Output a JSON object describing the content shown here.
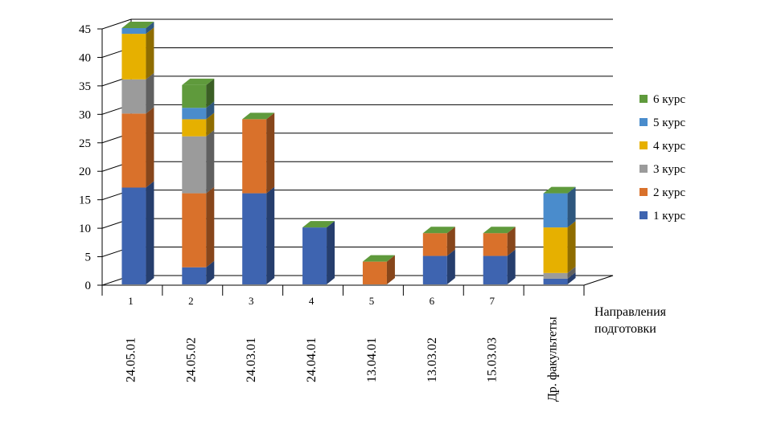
{
  "chart_data": {
    "type": "bar",
    "stacked": true,
    "three_d": true,
    "categories": [
      "1",
      "2",
      "3",
      "4",
      "5",
      "6",
      "7",
      ""
    ],
    "category_codes": [
      "24.05.01",
      "24.05.02",
      "24.03.01",
      "24.04.01",
      "13.04.01",
      "13.03.02",
      "15.03.03",
      "Др. факультеты"
    ],
    "xlabel": "Направления подготовки",
    "ylabel": "",
    "title": "",
    "ylim": [
      0,
      45
    ],
    "yticks": [
      0,
      5,
      10,
      15,
      20,
      25,
      30,
      35,
      40,
      45
    ],
    "grid": true,
    "legend_position": "right",
    "series": [
      {
        "name": "1 курс",
        "color": "#3e64b0",
        "values": [
          17,
          3,
          16,
          10,
          0,
          5,
          5,
          1
        ]
      },
      {
        "name": "2 курс",
        "color": "#d9712b",
        "values": [
          13,
          13,
          13,
          0,
          4,
          4,
          4,
          0
        ]
      },
      {
        "name": "3 курс",
        "color": "#9b9b9b",
        "values": [
          6,
          10,
          0,
          0,
          0,
          0,
          0,
          1
        ]
      },
      {
        "name": "4 курс",
        "color": "#e6b000",
        "values": [
          8,
          3,
          0,
          0,
          0,
          0,
          0,
          8
        ]
      },
      {
        "name": "5 курс",
        "color": "#4a8ccc",
        "values": [
          1,
          2,
          0,
          0,
          0,
          0,
          0,
          6
        ]
      },
      {
        "name": "6 курс",
        "color": "#5f9a3c",
        "values": [
          0,
          4,
          0,
          0,
          0,
          0,
          0,
          0
        ]
      }
    ]
  }
}
